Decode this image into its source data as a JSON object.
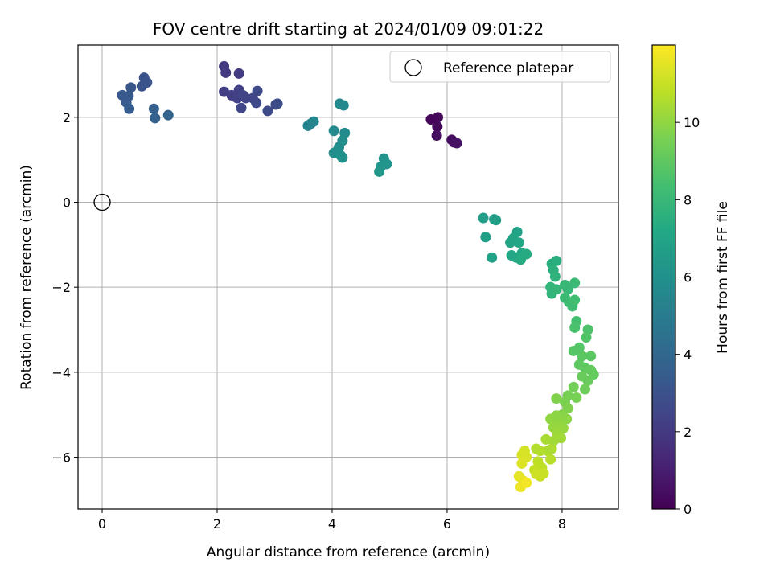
{
  "chart_data": {
    "type": "scatter",
    "title": "FOV centre drift starting at 2024/01/09 09:01:22",
    "xlabel": "Angular distance from reference (arcmin)",
    "ylabel": "Rotation from reference (arcmin)",
    "xlim": [
      -0.42,
      8.98
    ],
    "ylim": [
      -7.22,
      3.7
    ],
    "xticks": [
      0,
      2,
      4,
      6,
      8
    ],
    "yticks": [
      -6,
      -4,
      -2,
      0,
      2
    ],
    "grid": true,
    "legend": {
      "location": "top-right",
      "entries": [
        "Reference platepar"
      ]
    },
    "reference_point": {
      "x": 0,
      "y": 0,
      "marker": "open-circle"
    },
    "colorbar": {
      "label": "Hours from first FF file",
      "colormap": "viridis",
      "range": [
        0,
        12
      ],
      "ticks": [
        0,
        2,
        4,
        6,
        8,
        10
      ]
    },
    "points": [
      {
        "x": 5.72,
        "y": 1.95,
        "c": 0.1
      },
      {
        "x": 5.84,
        "y": 2.0,
        "c": 0.2
      },
      {
        "x": 5.83,
        "y": 1.78,
        "c": 0.3
      },
      {
        "x": 5.82,
        "y": 1.57,
        "c": 0.4
      },
      {
        "x": 6.08,
        "y": 1.47,
        "c": 0.4
      },
      {
        "x": 6.12,
        "y": 1.41,
        "c": 0.5
      },
      {
        "x": 6.17,
        "y": 1.39,
        "c": 0.6
      },
      {
        "x": 2.12,
        "y": 3.2,
        "c": 2.0
      },
      {
        "x": 2.15,
        "y": 3.05,
        "c": 2.0
      },
      {
        "x": 2.38,
        "y": 3.03,
        "c": 2.1
      },
      {
        "x": 2.12,
        "y": 2.6,
        "c": 2.2
      },
      {
        "x": 2.25,
        "y": 2.52,
        "c": 2.2
      },
      {
        "x": 2.35,
        "y": 2.45,
        "c": 2.3
      },
      {
        "x": 2.38,
        "y": 2.64,
        "c": 2.3
      },
      {
        "x": 2.45,
        "y": 2.52,
        "c": 2.4
      },
      {
        "x": 2.5,
        "y": 2.45,
        "c": 2.4
      },
      {
        "x": 2.42,
        "y": 2.22,
        "c": 2.5
      },
      {
        "x": 2.62,
        "y": 2.45,
        "c": 2.5
      },
      {
        "x": 2.68,
        "y": 2.34,
        "c": 2.6
      },
      {
        "x": 2.7,
        "y": 2.62,
        "c": 2.6
      },
      {
        "x": 2.88,
        "y": 2.15,
        "c": 2.7
      },
      {
        "x": 3.02,
        "y": 2.3,
        "c": 2.7
      },
      {
        "x": 3.05,
        "y": 2.32,
        "c": 2.8
      },
      {
        "x": 0.73,
        "y": 2.93,
        "c": 3.0
      },
      {
        "x": 0.78,
        "y": 2.82,
        "c": 3.0
      },
      {
        "x": 0.69,
        "y": 2.73,
        "c": 3.1
      },
      {
        "x": 0.5,
        "y": 2.7,
        "c": 3.2
      },
      {
        "x": 0.35,
        "y": 2.52,
        "c": 3.3
      },
      {
        "x": 0.46,
        "y": 2.5,
        "c": 3.3
      },
      {
        "x": 0.42,
        "y": 2.35,
        "c": 3.4
      },
      {
        "x": 0.47,
        "y": 2.2,
        "c": 3.5
      },
      {
        "x": 0.9,
        "y": 2.2,
        "c": 3.6
      },
      {
        "x": 0.92,
        "y": 1.98,
        "c": 3.7
      },
      {
        "x": 1.15,
        "y": 2.05,
        "c": 3.8
      },
      {
        "x": 3.58,
        "y": 1.8,
        "c": 5.3
      },
      {
        "x": 3.63,
        "y": 1.85,
        "c": 5.3
      },
      {
        "x": 3.68,
        "y": 1.9,
        "c": 5.4
      },
      {
        "x": 4.13,
        "y": 2.32,
        "c": 5.6
      },
      {
        "x": 4.2,
        "y": 2.28,
        "c": 5.6
      },
      {
        "x": 4.03,
        "y": 1.68,
        "c": 5.7
      },
      {
        "x": 4.22,
        "y": 1.63,
        "c": 5.7
      },
      {
        "x": 4.18,
        "y": 1.45,
        "c": 5.8
      },
      {
        "x": 4.12,
        "y": 1.3,
        "c": 5.8
      },
      {
        "x": 4.03,
        "y": 1.16,
        "c": 5.9
      },
      {
        "x": 4.08,
        "y": 1.2,
        "c": 5.9
      },
      {
        "x": 4.15,
        "y": 1.1,
        "c": 6.0
      },
      {
        "x": 4.18,
        "y": 1.05,
        "c": 6.0
      },
      {
        "x": 4.9,
        "y": 1.03,
        "c": 6.1
      },
      {
        "x": 4.95,
        "y": 0.9,
        "c": 6.2
      },
      {
        "x": 4.85,
        "y": 0.84,
        "c": 6.2
      },
      {
        "x": 4.82,
        "y": 0.72,
        "c": 6.3
      },
      {
        "x": 6.63,
        "y": -0.37,
        "c": 6.6
      },
      {
        "x": 6.82,
        "y": -0.4,
        "c": 6.7
      },
      {
        "x": 6.85,
        "y": -0.42,
        "c": 6.7
      },
      {
        "x": 6.67,
        "y": -0.82,
        "c": 6.8
      },
      {
        "x": 6.78,
        "y": -1.3,
        "c": 6.9
      },
      {
        "x": 7.22,
        "y": -0.7,
        "c": 6.9
      },
      {
        "x": 7.15,
        "y": -0.85,
        "c": 7.0
      },
      {
        "x": 7.1,
        "y": -0.95,
        "c": 7.0
      },
      {
        "x": 7.25,
        "y": -0.95,
        "c": 7.1
      },
      {
        "x": 7.12,
        "y": -1.25,
        "c": 7.1
      },
      {
        "x": 7.2,
        "y": -1.3,
        "c": 7.2
      },
      {
        "x": 7.3,
        "y": -1.2,
        "c": 7.2
      },
      {
        "x": 7.38,
        "y": -1.22,
        "c": 7.3
      },
      {
        "x": 7.28,
        "y": -1.35,
        "c": 7.3
      },
      {
        "x": 7.82,
        "y": -1.45,
        "c": 7.5
      },
      {
        "x": 7.9,
        "y": -1.38,
        "c": 7.5
      },
      {
        "x": 7.85,
        "y": -1.6,
        "c": 7.6
      },
      {
        "x": 7.88,
        "y": -1.75,
        "c": 7.7
      },
      {
        "x": 7.8,
        "y": -2.0,
        "c": 7.8
      },
      {
        "x": 7.82,
        "y": -2.15,
        "c": 7.8
      },
      {
        "x": 7.9,
        "y": -2.05,
        "c": 7.9
      },
      {
        "x": 8.05,
        "y": -1.95,
        "c": 8.0
      },
      {
        "x": 8.1,
        "y": -2.05,
        "c": 8.0
      },
      {
        "x": 8.22,
        "y": -1.9,
        "c": 8.1
      },
      {
        "x": 8.05,
        "y": -2.25,
        "c": 8.1
      },
      {
        "x": 8.12,
        "y": -2.35,
        "c": 8.2
      },
      {
        "x": 8.18,
        "y": -2.45,
        "c": 8.2
      },
      {
        "x": 8.22,
        "y": -2.3,
        "c": 8.3
      },
      {
        "x": 8.25,
        "y": -2.8,
        "c": 8.4
      },
      {
        "x": 8.22,
        "y": -2.95,
        "c": 8.5
      },
      {
        "x": 8.45,
        "y": -3.0,
        "c": 8.6
      },
      {
        "x": 8.42,
        "y": -3.18,
        "c": 8.7
      },
      {
        "x": 8.2,
        "y": -3.5,
        "c": 8.8
      },
      {
        "x": 8.3,
        "y": -3.42,
        "c": 8.8
      },
      {
        "x": 8.35,
        "y": -3.62,
        "c": 8.9
      },
      {
        "x": 8.5,
        "y": -3.62,
        "c": 8.9
      },
      {
        "x": 8.3,
        "y": -3.82,
        "c": 9.0
      },
      {
        "x": 8.4,
        "y": -3.9,
        "c": 9.0
      },
      {
        "x": 8.5,
        "y": -3.95,
        "c": 9.1
      },
      {
        "x": 8.55,
        "y": -4.05,
        "c": 9.1
      },
      {
        "x": 8.35,
        "y": -4.1,
        "c": 9.2
      },
      {
        "x": 8.45,
        "y": -4.2,
        "c": 9.2
      },
      {
        "x": 8.4,
        "y": -4.4,
        "c": 9.3
      },
      {
        "x": 8.2,
        "y": -4.35,
        "c": 9.4
      },
      {
        "x": 8.25,
        "y": -4.6,
        "c": 9.5
      },
      {
        "x": 8.1,
        "y": -4.55,
        "c": 9.5
      },
      {
        "x": 8.05,
        "y": -4.7,
        "c": 9.6
      },
      {
        "x": 8.1,
        "y": -4.85,
        "c": 9.7
      },
      {
        "x": 7.9,
        "y": -4.62,
        "c": 9.7
      },
      {
        "x": 8.0,
        "y": -5.0,
        "c": 9.8
      },
      {
        "x": 7.9,
        "y": -5.02,
        "c": 9.9
      },
      {
        "x": 8.08,
        "y": -5.1,
        "c": 9.9
      },
      {
        "x": 7.95,
        "y": -5.2,
        "c": 10.0
      },
      {
        "x": 7.8,
        "y": -5.1,
        "c": 10.0
      },
      {
        "x": 7.85,
        "y": -5.3,
        "c": 10.1
      },
      {
        "x": 8.02,
        "y": -5.32,
        "c": 10.1
      },
      {
        "x": 7.92,
        "y": -5.45,
        "c": 10.2
      },
      {
        "x": 7.98,
        "y": -5.55,
        "c": 10.3
      },
      {
        "x": 7.85,
        "y": -5.62,
        "c": 10.3
      },
      {
        "x": 7.72,
        "y": -5.58,
        "c": 10.4
      },
      {
        "x": 7.82,
        "y": -5.8,
        "c": 10.5
      },
      {
        "x": 7.75,
        "y": -5.85,
        "c": 10.5
      },
      {
        "x": 7.62,
        "y": -5.85,
        "c": 10.6
      },
      {
        "x": 7.55,
        "y": -5.8,
        "c": 10.6
      },
      {
        "x": 7.8,
        "y": -6.05,
        "c": 10.7
      },
      {
        "x": 7.58,
        "y": -6.1,
        "c": 10.8
      },
      {
        "x": 7.65,
        "y": -6.25,
        "c": 10.8
      },
      {
        "x": 7.52,
        "y": -6.3,
        "c": 10.9
      },
      {
        "x": 7.68,
        "y": -6.38,
        "c": 11.0
      },
      {
        "x": 7.62,
        "y": -6.45,
        "c": 11.0
      },
      {
        "x": 7.55,
        "y": -6.4,
        "c": 11.1
      },
      {
        "x": 7.35,
        "y": -5.85,
        "c": 11.2
      },
      {
        "x": 7.3,
        "y": -5.95,
        "c": 11.3
      },
      {
        "x": 7.38,
        "y": -6.0,
        "c": 11.3
      },
      {
        "x": 7.3,
        "y": -6.15,
        "c": 11.4
      },
      {
        "x": 7.25,
        "y": -6.45,
        "c": 11.5
      },
      {
        "x": 7.32,
        "y": -6.55,
        "c": 11.6
      },
      {
        "x": 7.28,
        "y": -6.7,
        "c": 11.7
      },
      {
        "x": 7.38,
        "y": -6.6,
        "c": 11.8
      }
    ]
  }
}
